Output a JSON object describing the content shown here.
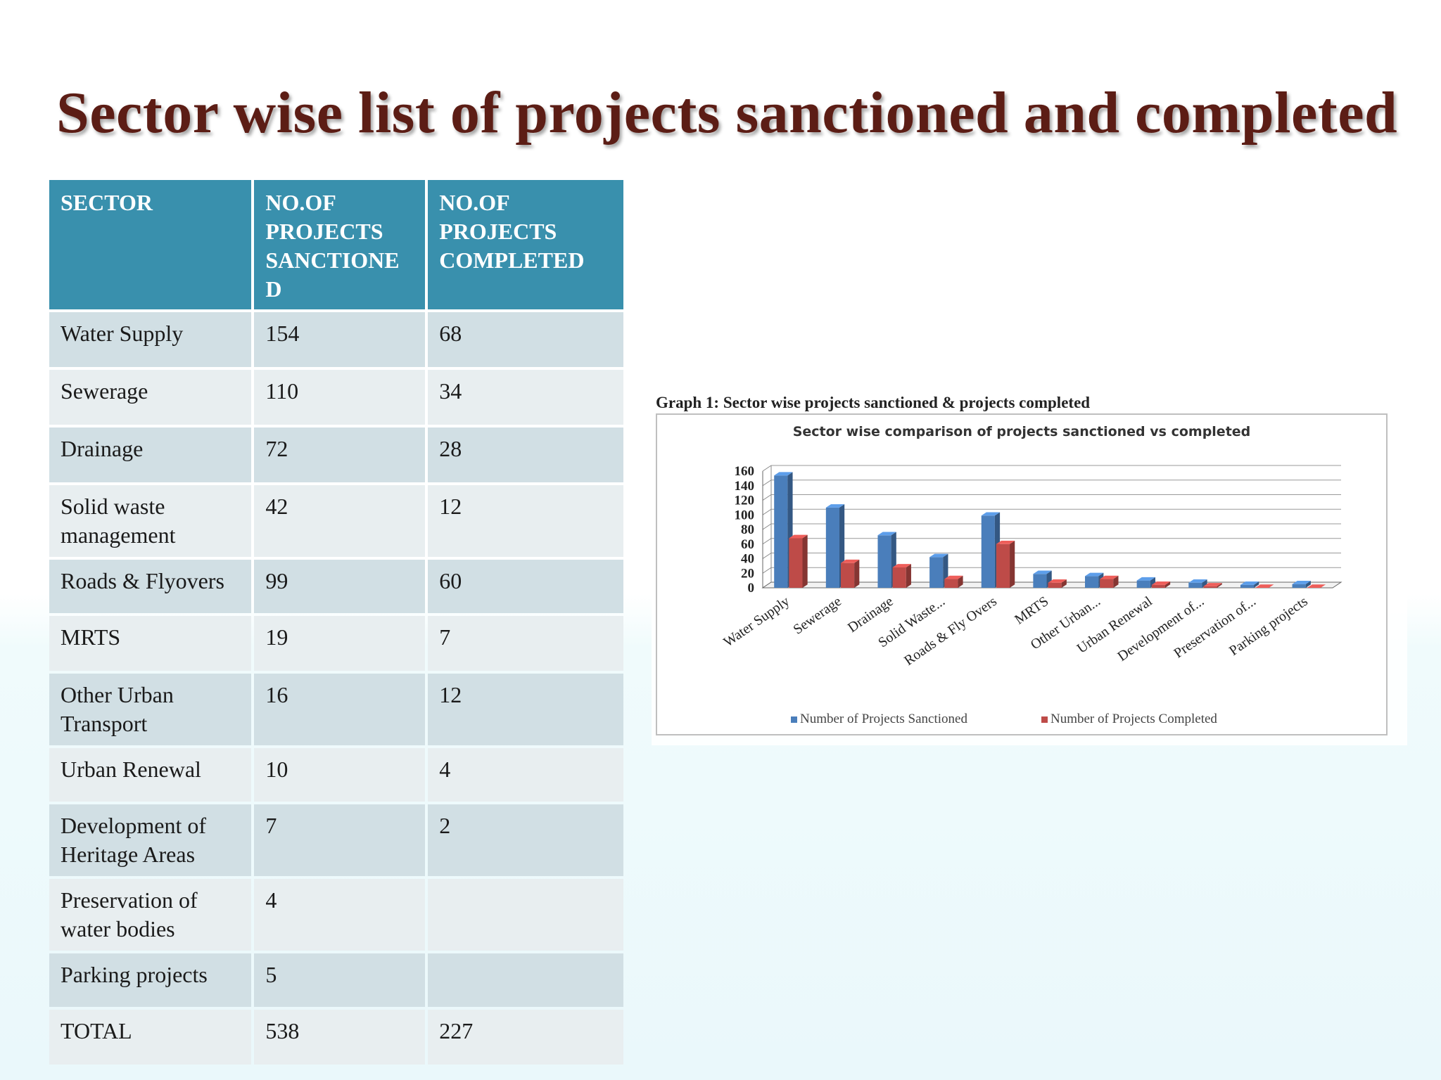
{
  "title": "Sector wise list of projects sanctioned and completed",
  "table": {
    "headers": [
      "SECTOR",
      "NO.OF PROJECTS SANCTIONE D",
      "NO.OF PROJECTS COMPLETED"
    ],
    "rows": [
      {
        "sector": "Water Supply",
        "sanctioned": "154",
        "completed": "68"
      },
      {
        "sector": "Sewerage",
        "sanctioned": "110",
        "completed": "34"
      },
      {
        "sector": "Drainage",
        "sanctioned": "72",
        "completed": "28"
      },
      {
        "sector": "Solid waste management",
        "sanctioned": "42",
        "completed": "12"
      },
      {
        "sector": "Roads & Flyovers",
        "sanctioned": "99",
        "completed": "60"
      },
      {
        "sector": "MRTS",
        "sanctioned": "19",
        "completed": "7"
      },
      {
        "sector": "Other Urban Transport",
        "sanctioned": "16",
        "completed": "12"
      },
      {
        "sector": "Urban Renewal",
        "sanctioned": "10",
        "completed": "4"
      },
      {
        "sector": "Development of Heritage Areas",
        "sanctioned": "7",
        "completed": "2"
      },
      {
        "sector": "Preservation of water bodies",
        "sanctioned": "4",
        "completed": ""
      },
      {
        "sector": "Parking projects",
        "sanctioned": "5",
        "completed": ""
      },
      {
        "sector": "TOTAL",
        "sanctioned": "538",
        "completed": "227"
      }
    ]
  },
  "graph_caption": "Graph 1: Sector wise projects sanctioned & projects completed",
  "chart_data": {
    "type": "bar",
    "title": "Sector wise comparison of projects sanctioned vs completed",
    "categories": [
      "Water Supply",
      "Sewerage",
      "Drainage",
      "Solid Waste...",
      "Roads & Fly Overs",
      "MRTS",
      "Other Urban...",
      "Urban Renewal",
      "Development of...",
      "Preservation of...",
      "Parking projects"
    ],
    "series": [
      {
        "name": "Number of Projects Sanctioned",
        "color": "#4a7ebb",
        "values": [
          154,
          110,
          72,
          42,
          99,
          19,
          16,
          10,
          7,
          4,
          5
        ]
      },
      {
        "name": "Number of Projects Completed",
        "color": "#be4b48",
        "values": [
          68,
          34,
          28,
          12,
          60,
          7,
          12,
          4,
          2,
          0,
          0
        ]
      }
    ],
    "yticks": [
      0,
      20,
      40,
      60,
      80,
      100,
      120,
      140,
      160
    ],
    "ylim": [
      0,
      160
    ],
    "grid": true,
    "legend": "bottom"
  }
}
